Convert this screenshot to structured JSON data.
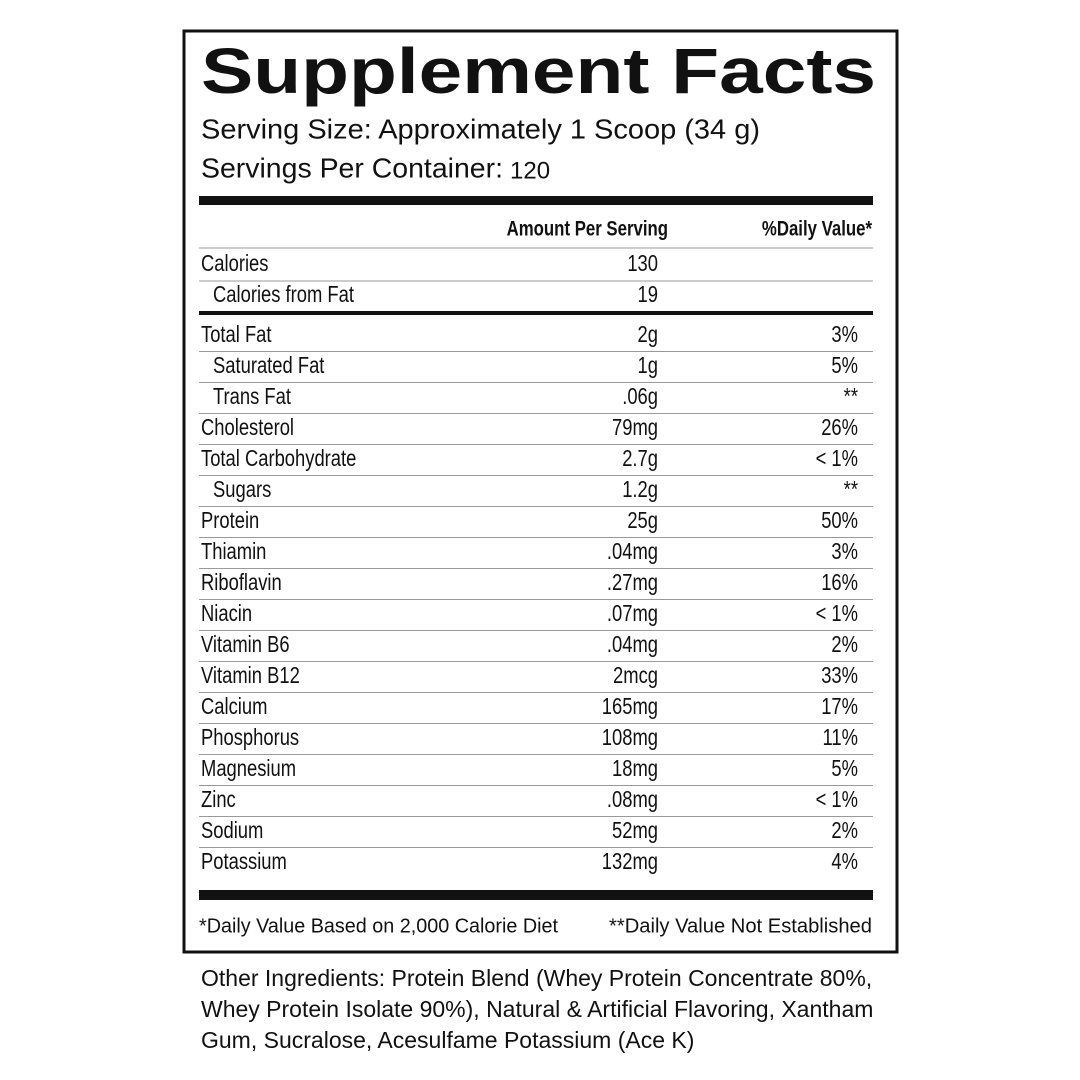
{
  "label": {
    "title": "Supplement Facts",
    "serving_size": "Serving Size: Approximately 1 Scoop (34 g)",
    "servings_per_container_label": "Servings Per Container:",
    "servings_per_container": "120"
  },
  "table": {
    "header": {
      "amount": "Amount Per Serving",
      "dv": "%Daily Value*"
    },
    "calories": [
      {
        "name": "Calories",
        "amount": "130"
      },
      {
        "name": "Calories from Fat",
        "amount": "19",
        "sub": true
      }
    ],
    "nutrients": [
      {
        "name": "Total Fat",
        "amount": "2g",
        "dv": "3%"
      },
      {
        "name": "Saturated Fat",
        "amount": "1g",
        "dv": "5%",
        "sub": true
      },
      {
        "name": "Trans Fat",
        "amount": ".06g",
        "dv": "**",
        "sub": true
      },
      {
        "name": "Cholesterol",
        "amount": "79mg",
        "dv": "26%"
      },
      {
        "name": "Total Carbohydrate",
        "amount": "2.7g",
        "dv": "< 1%"
      },
      {
        "name": "Sugars",
        "amount": "1.2g",
        "dv": "**",
        "sub": true
      },
      {
        "name": "Protein",
        "amount": "25g",
        "dv": "50%"
      },
      {
        "name": "Thiamin",
        "amount": ".04mg",
        "dv": "3%"
      },
      {
        "name": "Riboflavin",
        "amount": ".27mg",
        "dv": "16%"
      },
      {
        "name": "Niacin",
        "amount": ".07mg",
        "dv": "< 1%"
      },
      {
        "name": "Vitamin B6",
        "amount": ".04mg",
        "dv": "2%"
      },
      {
        "name": "Vitamin B12",
        "amount": "2mcg",
        "dv": "33%"
      },
      {
        "name": "Calcium",
        "amount": "165mg",
        "dv": "17%"
      },
      {
        "name": "Phosphorus",
        "amount": "108mg",
        "dv": "11%"
      },
      {
        "name": "Magnesium",
        "amount": "18mg",
        "dv": "5%"
      },
      {
        "name": "Zinc",
        "amount": ".08mg",
        "dv": "< 1%"
      },
      {
        "name": "Sodium",
        "amount": "52mg",
        "dv": "2%"
      },
      {
        "name": "Potassium",
        "amount": "132mg",
        "dv": "4%"
      }
    ]
  },
  "footnotes": [
    "*Daily Value Based on 2,000 Calorie Diet",
    "**Daily Value Not Established"
  ],
  "other_ingredients": [
    "Other Ingredients: Protein Blend (Whey Protein Concentrate 80%,",
    "Whey Protein Isolate 90%), Natural & Artificial Flavoring, Xantham",
    "Gum, Sucralose, Acesulfame Potassium (Ace K)"
  ]
}
